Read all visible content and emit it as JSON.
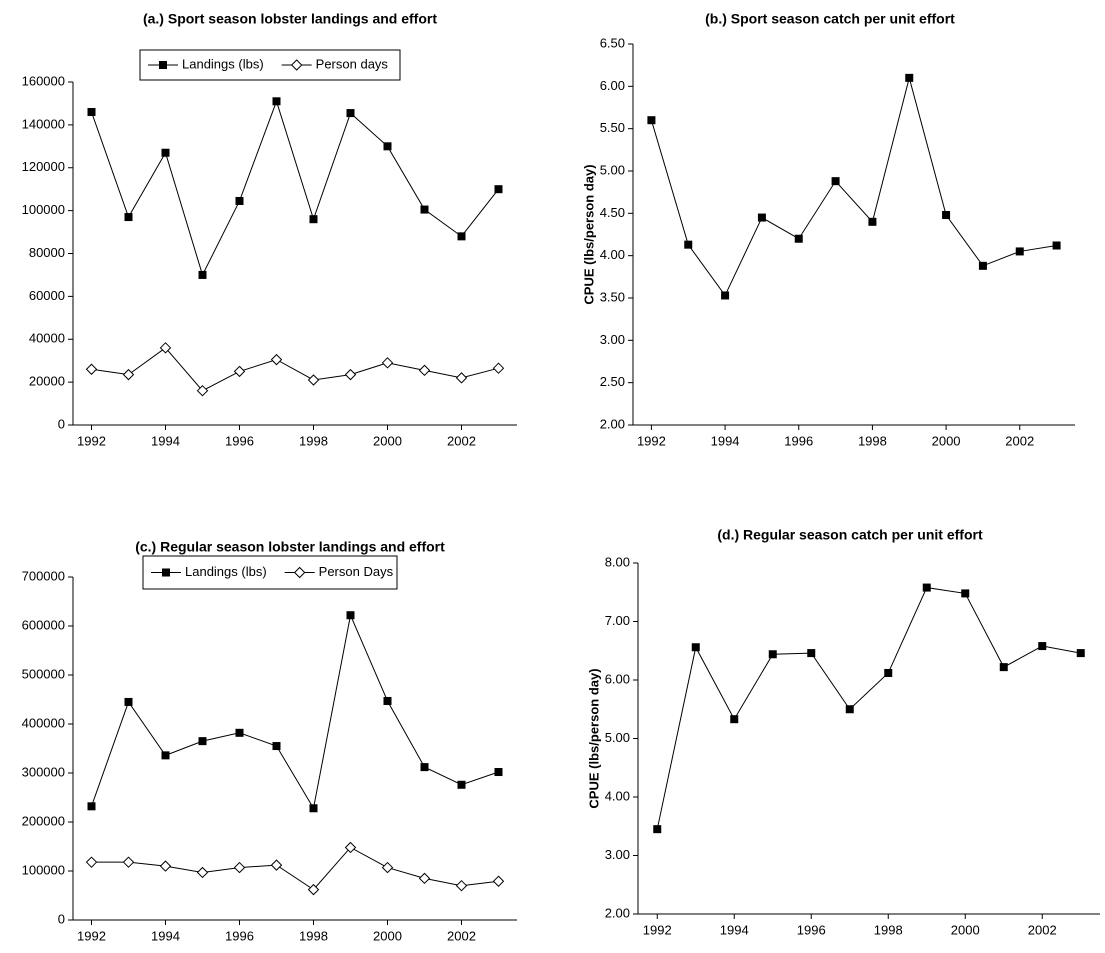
{
  "chart_data": [
    {
      "type": "line",
      "title": "(a.) Sport season lobster landings and effort",
      "x": [
        1992,
        1993,
        1994,
        1995,
        1996,
        1997,
        1998,
        1999,
        2000,
        2001,
        2002,
        2003
      ],
      "xlim": [
        1991.5,
        2003.5
      ],
      "xticks": [
        1992,
        1994,
        1996,
        1998,
        2000,
        2002
      ],
      "ylim": [
        0,
        160000
      ],
      "yticks": [
        0,
        20000,
        40000,
        60000,
        80000,
        100000,
        120000,
        140000,
        160000
      ],
      "legend": "top",
      "series": [
        {
          "name": "Landings (lbs)",
          "color": "#000000",
          "marker": "square",
          "values": [
            146000,
            97000,
            127000,
            70000,
            104500,
            151000,
            96000,
            145500,
            130000,
            100500,
            88000,
            110000
          ]
        },
        {
          "name": "Person days",
          "color": "#000000",
          "marker": "diamond",
          "values": [
            26000,
            23500,
            36000,
            16000,
            25000,
            30500,
            21000,
            23500,
            29000,
            25500,
            22000,
            26500
          ]
        }
      ]
    },
    {
      "type": "line",
      "title": "(b.) Sport season catch per unit effort",
      "y_label": "CPUE (lbs/person day)",
      "x": [
        1992,
        1993,
        1994,
        1995,
        1996,
        1997,
        1998,
        1999,
        2000,
        2001,
        2002,
        2003
      ],
      "xlim": [
        1991.5,
        2003.5
      ],
      "xticks": [
        1992,
        1994,
        1996,
        1998,
        2000,
        2002
      ],
      "ylim": [
        2,
        6.5
      ],
      "yticks": [
        {
          "value": 2,
          "label": "2.00"
        },
        {
          "value": 2.5,
          "label": "2.50"
        },
        {
          "value": 3,
          "label": "3.00"
        },
        {
          "value": 3.5,
          "label": "3.50"
        },
        {
          "value": 4,
          "label": "4.00"
        },
        {
          "value": 4.5,
          "label": "4.50"
        },
        {
          "value": 5,
          "label": "5.00"
        },
        {
          "value": 5.5,
          "label": "5.50"
        },
        {
          "value": 6,
          "label": "6.00"
        },
        {
          "value": 6.5,
          "label": "6.50"
        }
      ],
      "series": [
        {
          "color": "#000000",
          "marker": "square",
          "values": [
            5.6,
            4.13,
            3.53,
            4.45,
            4.2,
            4.88,
            4.4,
            6.1,
            4.48,
            3.88,
            4.05,
            4.12
          ]
        }
      ]
    },
    {
      "type": "line",
      "title": "(c.) Regular season lobster landings and effort",
      "x": [
        1992,
        1993,
        1994,
        1995,
        1996,
        1997,
        1998,
        1999,
        2000,
        2001,
        2002,
        2003
      ],
      "xlim": [
        1991.5,
        2003.5
      ],
      "xticks": [
        1992,
        1994,
        1996,
        1998,
        2000,
        2002
      ],
      "ylim": [
        0,
        700000
      ],
      "yticks": [
        0,
        100000,
        200000,
        300000,
        400000,
        500000,
        600000,
        700000
      ],
      "legend": "top",
      "series": [
        {
          "name": "Landings (lbs)",
          "color": "#000000",
          "marker": "square",
          "values": [
            232000,
            445000,
            336000,
            365000,
            382000,
            355000,
            228000,
            622000,
            447000,
            312000,
            276000,
            302000
          ]
        },
        {
          "name": "Person Days",
          "color": "#000000",
          "marker": "diamond",
          "values": [
            118000,
            118000,
            110000,
            97000,
            107000,
            112000,
            62000,
            148000,
            107000,
            85000,
            70000,
            79000
          ]
        }
      ]
    },
    {
      "type": "line",
      "title": "(d.) Regular season catch per unit effort",
      "y_label": "CPUE (lbs/person day)",
      "x": [
        1992,
        1993,
        1994,
        1995,
        1996,
        1997,
        1998,
        1999,
        2000,
        2001,
        2002,
        2003
      ],
      "xlim": [
        1991.5,
        2003.5
      ],
      "xticks": [
        1992,
        1994,
        1996,
        1998,
        2000,
        2002
      ],
      "ylim": [
        2,
        8
      ],
      "yticks": [
        {
          "value": 2,
          "label": "2.00"
        },
        {
          "value": 3,
          "label": "3.00"
        },
        {
          "value": 4,
          "label": "4.00"
        },
        {
          "value": 5,
          "label": "5.00"
        },
        {
          "value": 6,
          "label": "6.00"
        },
        {
          "value": 7,
          "label": "7.00"
        },
        {
          "value": 8,
          "label": "8.00"
        }
      ],
      "series": [
        {
          "color": "#000000",
          "marker": "square",
          "values": [
            3.45,
            6.56,
            5.33,
            6.44,
            6.46,
            5.5,
            6.12,
            7.58,
            7.48,
            6.22,
            6.58,
            6.46
          ]
        }
      ]
    }
  ]
}
